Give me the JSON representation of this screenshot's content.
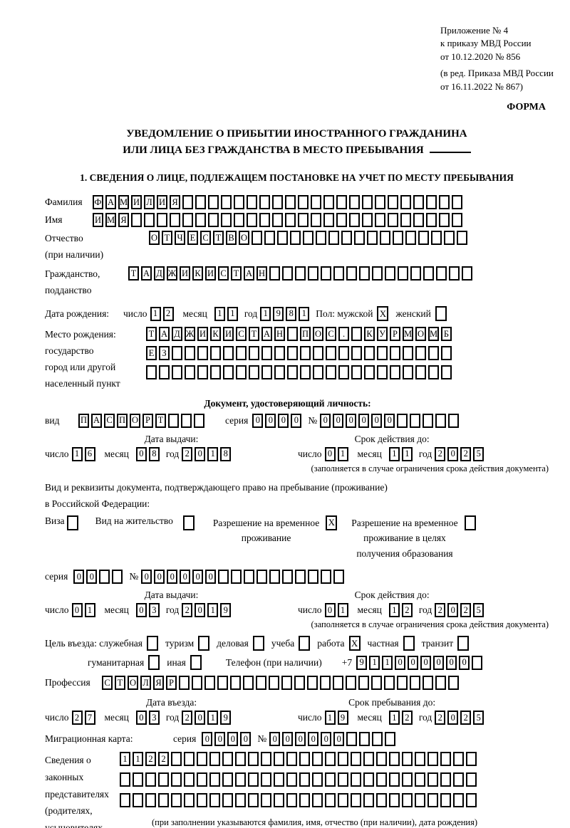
{
  "header": {
    "appendix_lines": "Приложение № 4\nк приказу МВД России\nот 10.12.2020 № 856",
    "amendment_lines": "(в ред. Приказа МВД России\nот 16.11.2022 № 867)",
    "form_label": "ФОРМА"
  },
  "title": {
    "line1": "УВЕДОМЛЕНИЕ О ПРИБЫТИИ ИНОСТРАННОГО ГРАЖДАНИНА",
    "line2": "ИЛИ ЛИЦА БЕЗ ГРАЖДАНСТВА В МЕСТО ПРЕБЫВАНИЯ"
  },
  "section1_heading": "1. СВЕДЕНИЯ О ЛИЦЕ, ПОДЛЕЖАЩЕМ ПОСТАНОВКЕ НА УЧЕТ ПО МЕСТУ ПРЕБЫВАНИЯ",
  "labels": {
    "lastname": "Фамилия",
    "firstname": "Имя",
    "patronymic": "Отчество\n(при наличии)",
    "citizenship": "Гражданство,\nподданство",
    "birth_date": "Дата рождения:",
    "day": "число",
    "month": "месяц",
    "year": "год",
    "sex_male": "Пол: мужской",
    "sex_female": "женский",
    "birth_place": "Место рождения:\nгосударство\nгород или другой\nнаселенный пункт",
    "identity_doc_heading": "Документ, удостоверяющий личность:",
    "doc_type": "вид",
    "series": "серия",
    "number_sign": "№",
    "issue_date": "Дата выдачи:",
    "valid_until": "Срок действия до:",
    "limited_validity_note": "(заполняется в случае ограничения срока действия документа)",
    "residence_doc_line1": "Вид и реквизиты документа, подтверждающего право на пребывание (проживание)",
    "residence_doc_line2": "в Российской Федерации:",
    "visa": "Виза",
    "residence_permit": "Вид на жительство",
    "temp_residence": "Разрешение на временное\nпроживание",
    "temp_residence_edu": "Разрешение на временное\nпроживание в целях\nполучения образования",
    "purpose": "Цель въезда: служебная",
    "tourism": "туризм",
    "business": "деловая",
    "study": "учеба",
    "work": "работа",
    "private": "частная",
    "transit": "транзит",
    "humanitarian": "гуманитарная",
    "other": "иная",
    "phone": "Телефон (при наличии)",
    "phone_prefix": "+7",
    "profession": "Профессия",
    "entry_date": "Дата въезда:",
    "stay_until": "Срок пребывания до:",
    "migration_card": "Миграционная карта:",
    "representatives": "Сведения о\nзаконных\nпредставителях\n(родителях,\nусыновителях,\nпопечителях)",
    "representatives_note": "(при заполнении указываются фамилия, имя, отчество (при наличии), дата рождения)"
  },
  "fields": {
    "lastname": {
      "count": 29,
      "value": "ФАМИЛИЯ"
    },
    "firstname": {
      "count": 29,
      "value": "ИМЯ"
    },
    "patronymic": {
      "count": 25,
      "value": "ОТЧЕСТВО"
    },
    "citizenship": {
      "count": 27,
      "value": "ТАДЖИКИСТАН"
    },
    "birth_day": {
      "count": 2,
      "value": "12"
    },
    "birth_month": {
      "count": 2,
      "value": "11"
    },
    "birth_year": {
      "count": 4,
      "value": "1981"
    },
    "birth_place_row1": {
      "count": 24,
      "value": "ТАДЖИКИСТАН ПОС. КУРМОМБ"
    },
    "birth_place_row2": {
      "count": 24,
      "value": "ЕЗ"
    },
    "birth_place_row3": {
      "count": 24,
      "value": ""
    },
    "doc_type": {
      "count": 10,
      "value": "ПАСПОРТ"
    },
    "doc_series": {
      "count": 4,
      "value": "0000"
    },
    "doc_number": {
      "count": 11,
      "value": "000000"
    },
    "doc_issue_day": {
      "count": 2,
      "value": "16"
    },
    "doc_issue_month": {
      "count": 2,
      "value": "08"
    },
    "doc_issue_year": {
      "count": 4,
      "value": "2018"
    },
    "doc_valid_day": {
      "count": 2,
      "value": "01"
    },
    "doc_valid_month": {
      "count": 2,
      "value": "11"
    },
    "doc_valid_year": {
      "count": 4,
      "value": "2025"
    },
    "permit_series": {
      "count": 4,
      "value": "00"
    },
    "permit_number": {
      "count": 16,
      "value": "000000"
    },
    "permit_issue_day": {
      "count": 2,
      "value": "01"
    },
    "permit_issue_month": {
      "count": 2,
      "value": "03"
    },
    "permit_issue_year": {
      "count": 4,
      "value": "2019"
    },
    "permit_valid_day": {
      "count": 2,
      "value": "01"
    },
    "permit_valid_month": {
      "count": 2,
      "value": "12"
    },
    "permit_valid_year": {
      "count": 4,
      "value": "2025"
    },
    "phone_digits": {
      "count": 10,
      "value": "911000000"
    },
    "profession": {
      "count": 28,
      "value": "СТОЛЯР"
    },
    "entry_day": {
      "count": 2,
      "value": "27"
    },
    "entry_month": {
      "count": 2,
      "value": "03"
    },
    "entry_year": {
      "count": 4,
      "value": "2019"
    },
    "stay_day": {
      "count": 2,
      "value": "19"
    },
    "stay_month": {
      "count": 2,
      "value": "12"
    },
    "stay_year": {
      "count": 4,
      "value": "2025"
    },
    "migration_series": {
      "count": 4,
      "value": "0000"
    },
    "migration_number": {
      "count": 10,
      "value": "000000"
    },
    "representatives_row1": {
      "count": 28,
      "value": "1122"
    },
    "representatives_row2": {
      "count": 28,
      "value": ""
    },
    "representatives_row3": {
      "count": 28,
      "value": ""
    }
  },
  "checks": {
    "sex_male": "X",
    "sex_female": "",
    "visa": "",
    "residence_permit": "",
    "temp_residence": "X",
    "temp_residence_edu": "",
    "official": "",
    "tourism": "",
    "business": "",
    "study": "",
    "work": "X",
    "private": "",
    "transit": "",
    "humanitarian": "",
    "other": ""
  }
}
